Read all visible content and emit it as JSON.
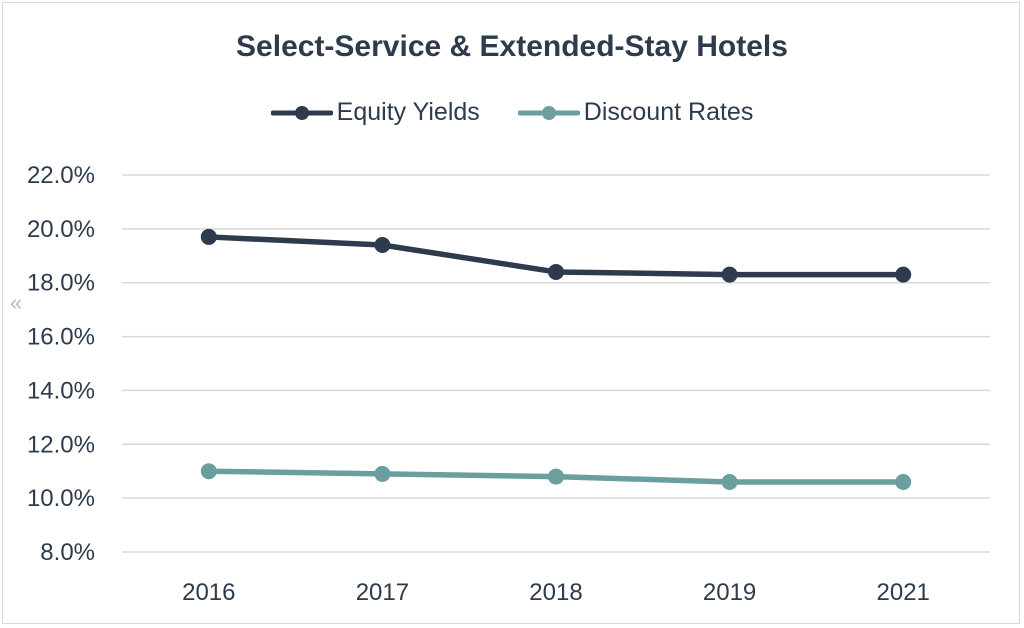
{
  "chart_data": {
    "type": "line",
    "title": "Select-Service & Extended-Stay Hotels",
    "xlabel": "",
    "ylabel": "",
    "categories": [
      "2016",
      "2017",
      "2018",
      "2019",
      "2021"
    ],
    "ylim": [
      8.0,
      22.0
    ],
    "yticks": [
      "8.0%",
      "10.0%",
      "12.0%",
      "14.0%",
      "16.0%",
      "18.0%",
      "20.0%",
      "22.0%"
    ],
    "grid": true,
    "legend_position": "top",
    "series": [
      {
        "name": "Equity Yields",
        "color": "#2d3b4c",
        "values": [
          19.7,
          19.4,
          18.4,
          18.3,
          18.3
        ]
      },
      {
        "name": "Discount Rates",
        "color": "#6a9e9f",
        "values": [
          11.0,
          10.9,
          10.8,
          10.6,
          10.6
        ]
      }
    ]
  },
  "nav": {
    "prev_icon": "double-chevron-left-icon",
    "prev_glyph": "«"
  }
}
